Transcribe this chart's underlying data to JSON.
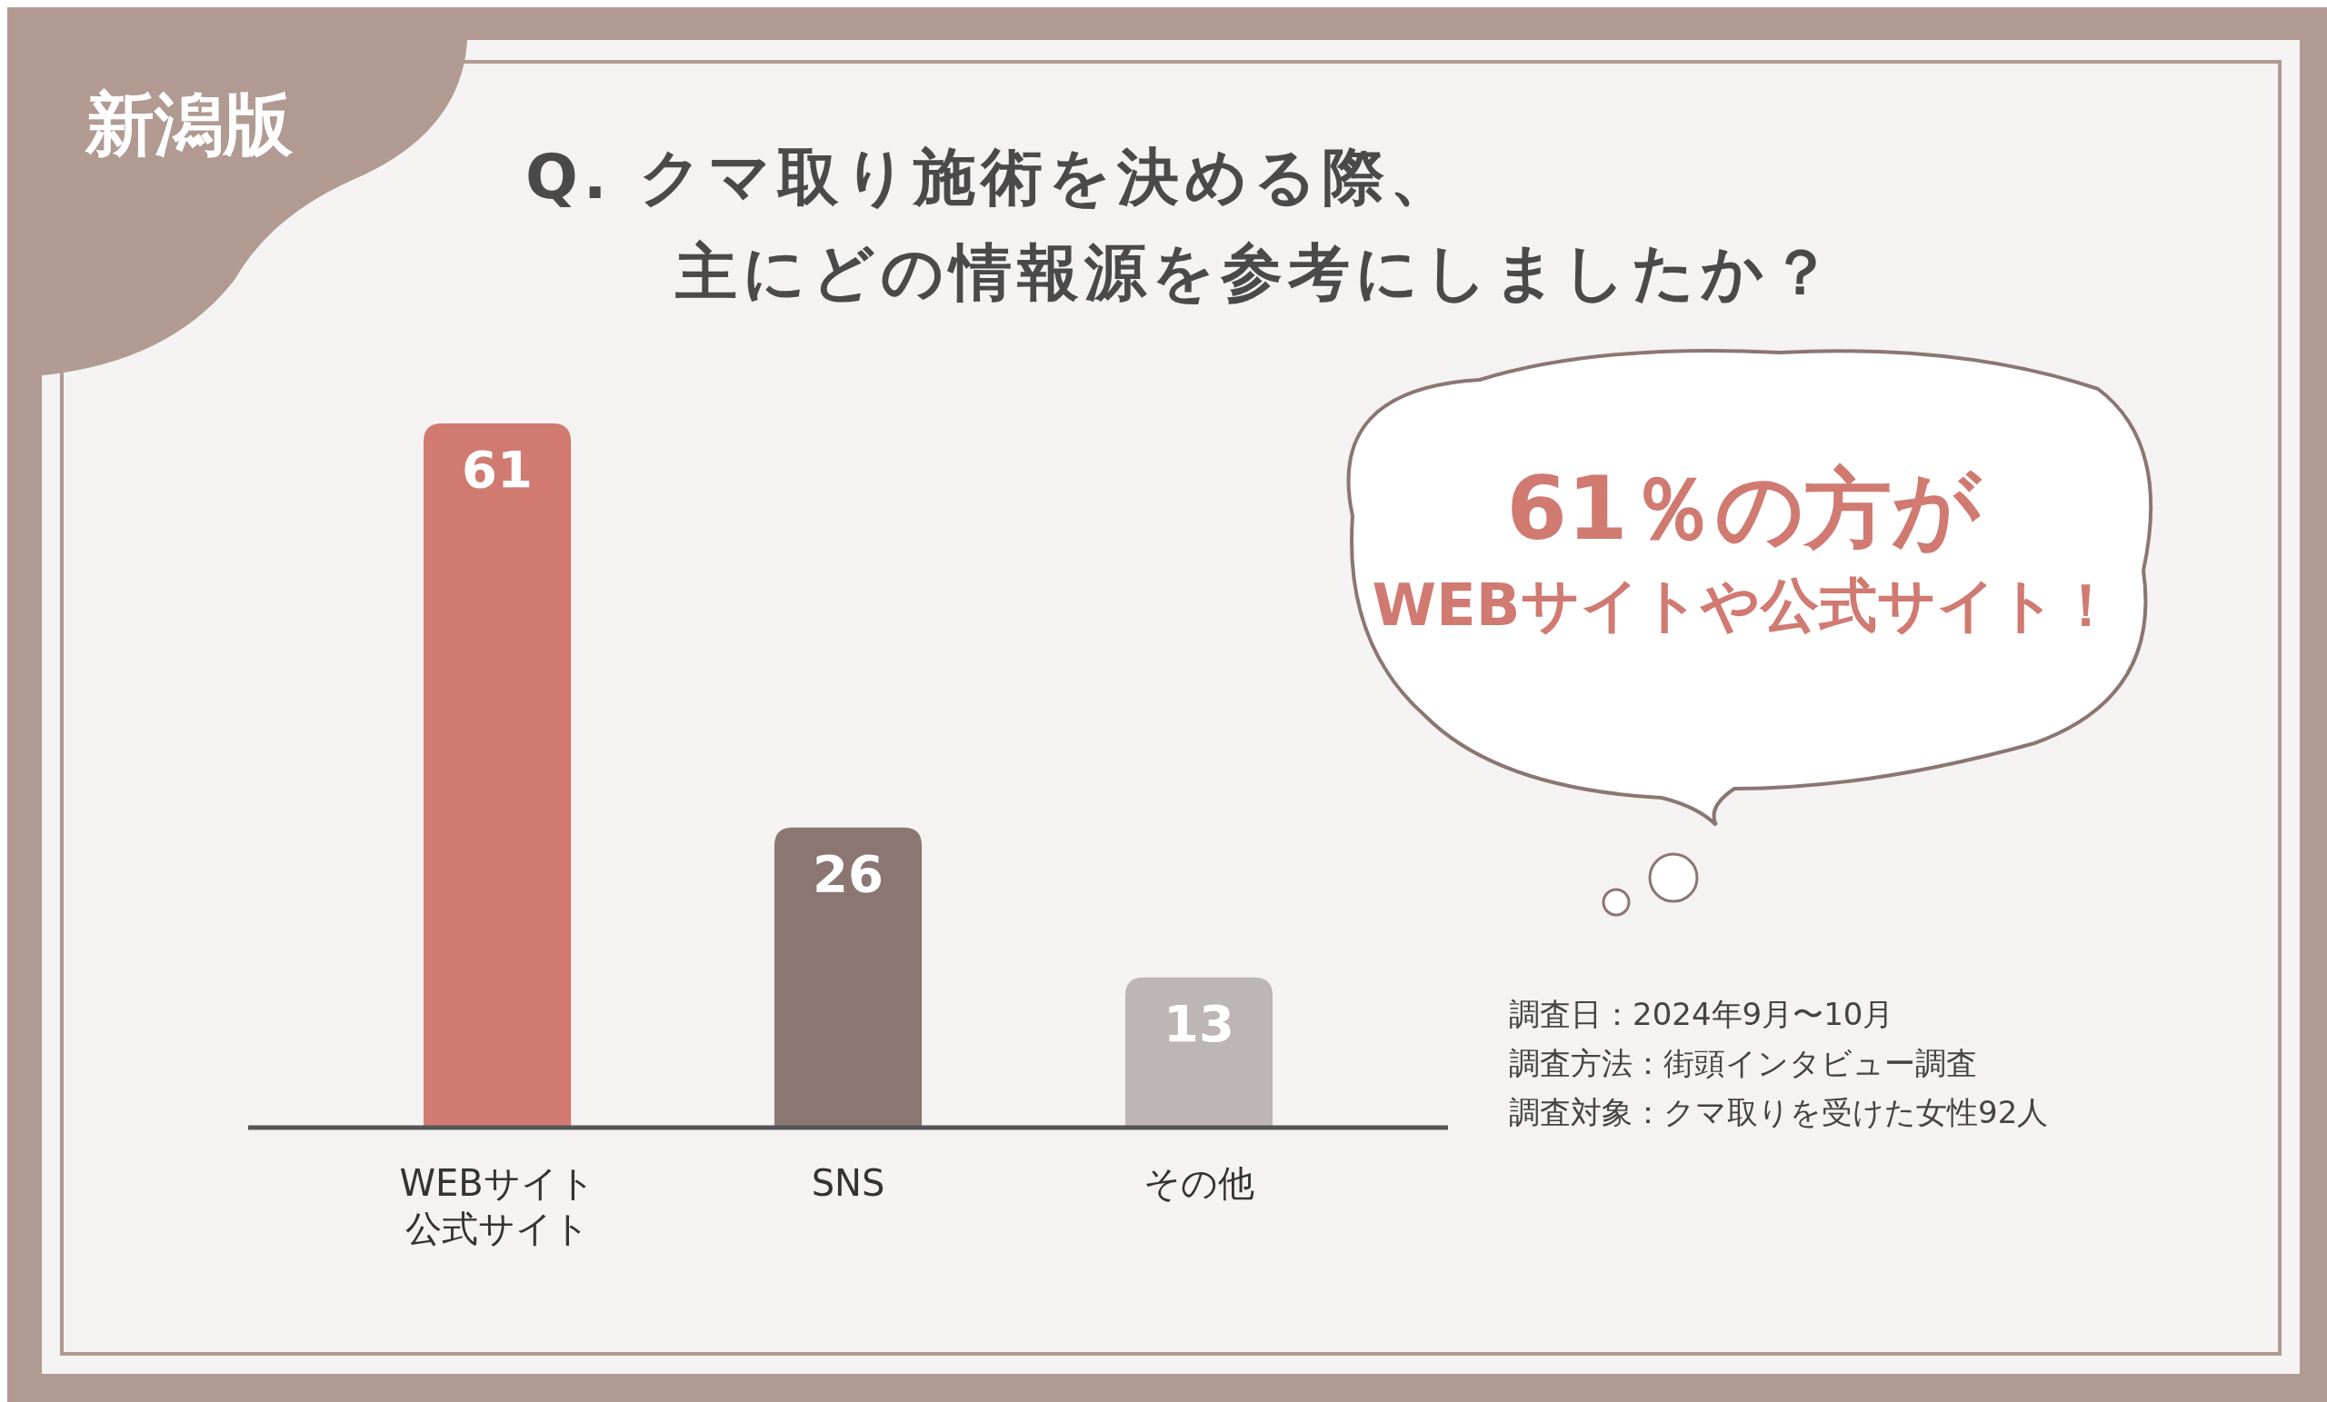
{
  "chart_data": {
    "type": "bar",
    "title": "Q. クマ取り施術を決める際、主にどの情報源を参考にしましたか？",
    "categories": [
      "WEBサイト公式サイト",
      "SNS",
      "その他"
    ],
    "values": [
      61,
      26,
      13
    ],
    "colors": [
      "#d07a72",
      "#8c7672",
      "#bdb6b4"
    ],
    "data_labels": true,
    "annotations": [
      "新潟版",
      "61％の方が",
      "WEBサイトや公式サイト！",
      "調査日：2024年9月〜10月",
      "調査方法：街頭インタビュー調査",
      "調査対象：クマ取りを受けた女性92人"
    ]
  }
}
